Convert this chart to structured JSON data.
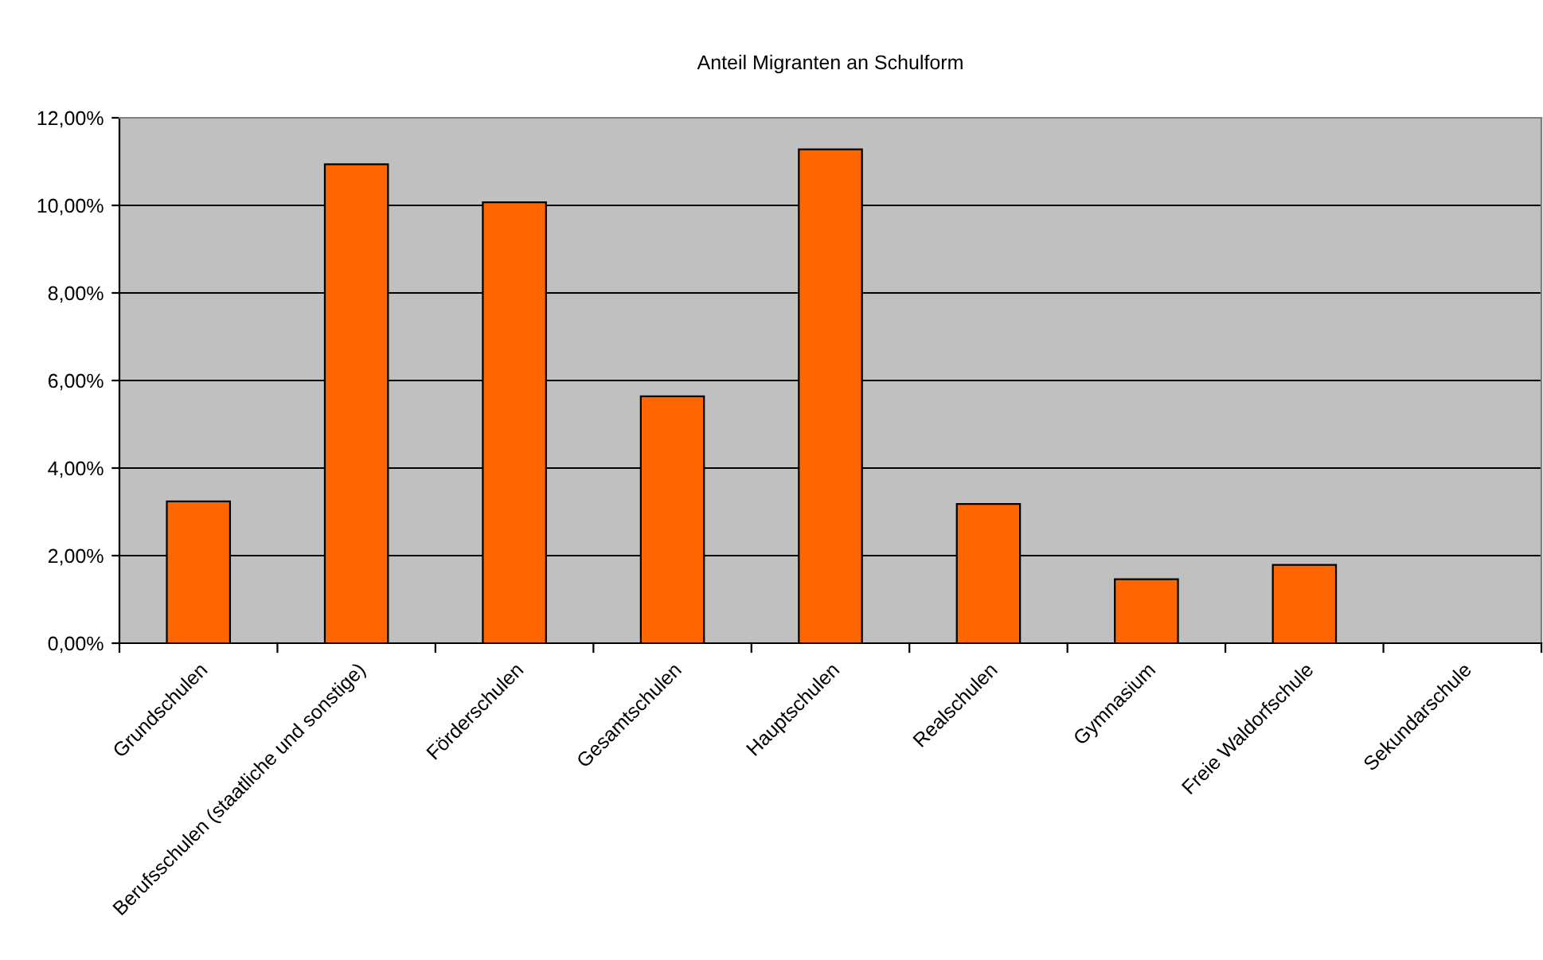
{
  "chart_data": {
    "type": "bar",
    "title": "Anteil Migranten an Schulform",
    "categories": [
      "Grundschulen",
      "Berufsschulen (staatliche und sonstige)",
      "Förderschulen",
      "Gesamtschulen",
      "Hauptschulen",
      "Realschulen",
      "Gymnasium",
      "Freie Waldorfschule",
      "Sekundarschule"
    ],
    "values": [
      3.24,
      10.94,
      10.07,
      5.64,
      11.28,
      3.18,
      1.46,
      1.79,
      0
    ],
    "color": "#ff6600",
    "ylim": [
      0,
      12
    ],
    "yticks": [
      {
        "value": 0,
        "label": "0,00%"
      },
      {
        "value": 2,
        "label": "2,00%"
      },
      {
        "value": 4,
        "label": "4,00%"
      },
      {
        "value": 6,
        "label": "6,00%"
      },
      {
        "value": 8,
        "label": "8,00%"
      },
      {
        "value": 10,
        "label": "10,00%"
      },
      {
        "value": 12,
        "label": "12,00%"
      }
    ],
    "grid": "y",
    "legend": false
  }
}
